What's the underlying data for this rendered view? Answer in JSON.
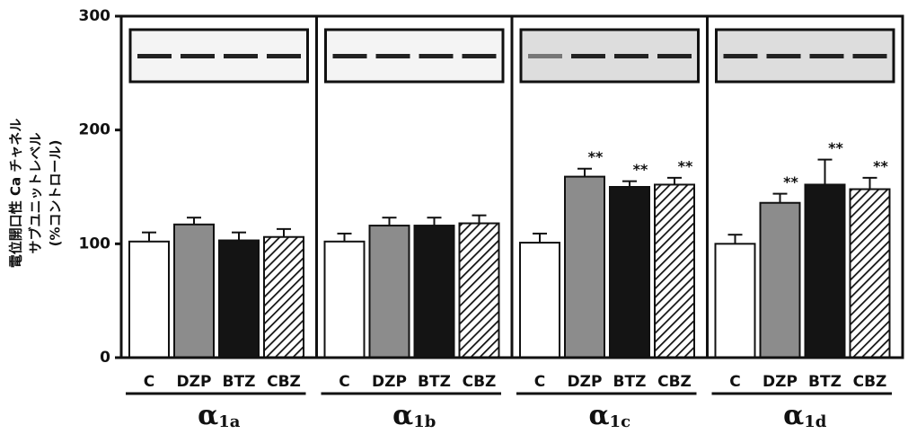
{
  "chart_data": {
    "type": "bar",
    "y_label": [
      "電位開口性 Ca チャネル",
      "サブユニットレベル",
      "(%コントロール)"
    ],
    "ylim": [
      0,
      300
    ],
    "yticks": [
      0,
      100,
      200,
      300
    ],
    "colors": [
      "#ffffff",
      "#8c8c8c",
      "#141414",
      "#ffffff"
    ],
    "hatch": [
      false,
      false,
      false,
      true
    ],
    "panels": [
      {
        "group": {
          "symbol": "α",
          "sub": "1a"
        },
        "categories": [
          "C",
          "DZP",
          "BTZ",
          "CBZ"
        ],
        "values": [
          102,
          117,
          103,
          106
        ],
        "errors": [
          8,
          6,
          7,
          7
        ],
        "annotations": [
          null,
          null,
          null,
          null
        ]
      },
      {
        "group": {
          "symbol": "α",
          "sub": "1b"
        },
        "categories": [
          "C",
          "DZP",
          "BTZ",
          "CBZ"
        ],
        "values": [
          102,
          116,
          116,
          118
        ],
        "errors": [
          7,
          7,
          7,
          7
        ],
        "annotations": [
          null,
          null,
          null,
          null
        ]
      },
      {
        "group": {
          "symbol": "α",
          "sub": "1c"
        },
        "categories": [
          "C",
          "DZP",
          "BTZ",
          "CBZ"
        ],
        "values": [
          101,
          159,
          150,
          152
        ],
        "errors": [
          8,
          7,
          5,
          6
        ],
        "annotations": [
          null,
          "**",
          "**",
          "**"
        ]
      },
      {
        "group": {
          "symbol": "α",
          "sub": "1d"
        },
        "categories": [
          "C",
          "DZP",
          "BTZ",
          "CBZ"
        ],
        "values": [
          100,
          136,
          152,
          148
        ],
        "errors": [
          8,
          8,
          22,
          10
        ],
        "annotations": [
          null,
          "**",
          "**",
          "**"
        ]
      }
    ]
  }
}
